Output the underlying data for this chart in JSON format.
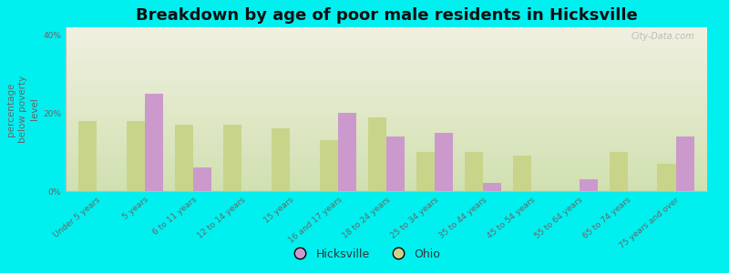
{
  "title": "Breakdown by age of poor male residents in Hicksville",
  "ylabel": "percentage\nbelow poverty\nlevel",
  "background_color": "#00f0f0",
  "plot_bg_top": "#f0f0e0",
  "plot_bg_bottom": "#d0e0b0",
  "categories": [
    "Under 5 years",
    "5 years",
    "6 to 11 years",
    "12 to 14 years",
    "15 years",
    "16 and 17 years",
    "18 to 24 years",
    "25 to 34 years",
    "35 to 44 years",
    "45 to 54 years",
    "55 to 64 years",
    "65 to 74 years",
    "75 years and over"
  ],
  "hicksville": [
    0,
    25,
    6,
    0,
    0,
    20,
    14,
    15,
    2,
    0,
    3,
    0,
    14
  ],
  "ohio": [
    18,
    18,
    17,
    17,
    16,
    13,
    19,
    10,
    10,
    9,
    0,
    10,
    7
  ],
  "hicksville_color": "#cc99cc",
  "ohio_color": "#c8d48a",
  "ylim": [
    0,
    42
  ],
  "yticks": [
    0,
    20,
    40
  ],
  "ytick_labels": [
    "0%",
    "20%",
    "40%"
  ],
  "bar_width": 0.38,
  "title_fontsize": 13,
  "axis_label_fontsize": 7.5,
  "tick_fontsize": 6.5,
  "legend_fontsize": 9,
  "watermark": "City-Data.com"
}
